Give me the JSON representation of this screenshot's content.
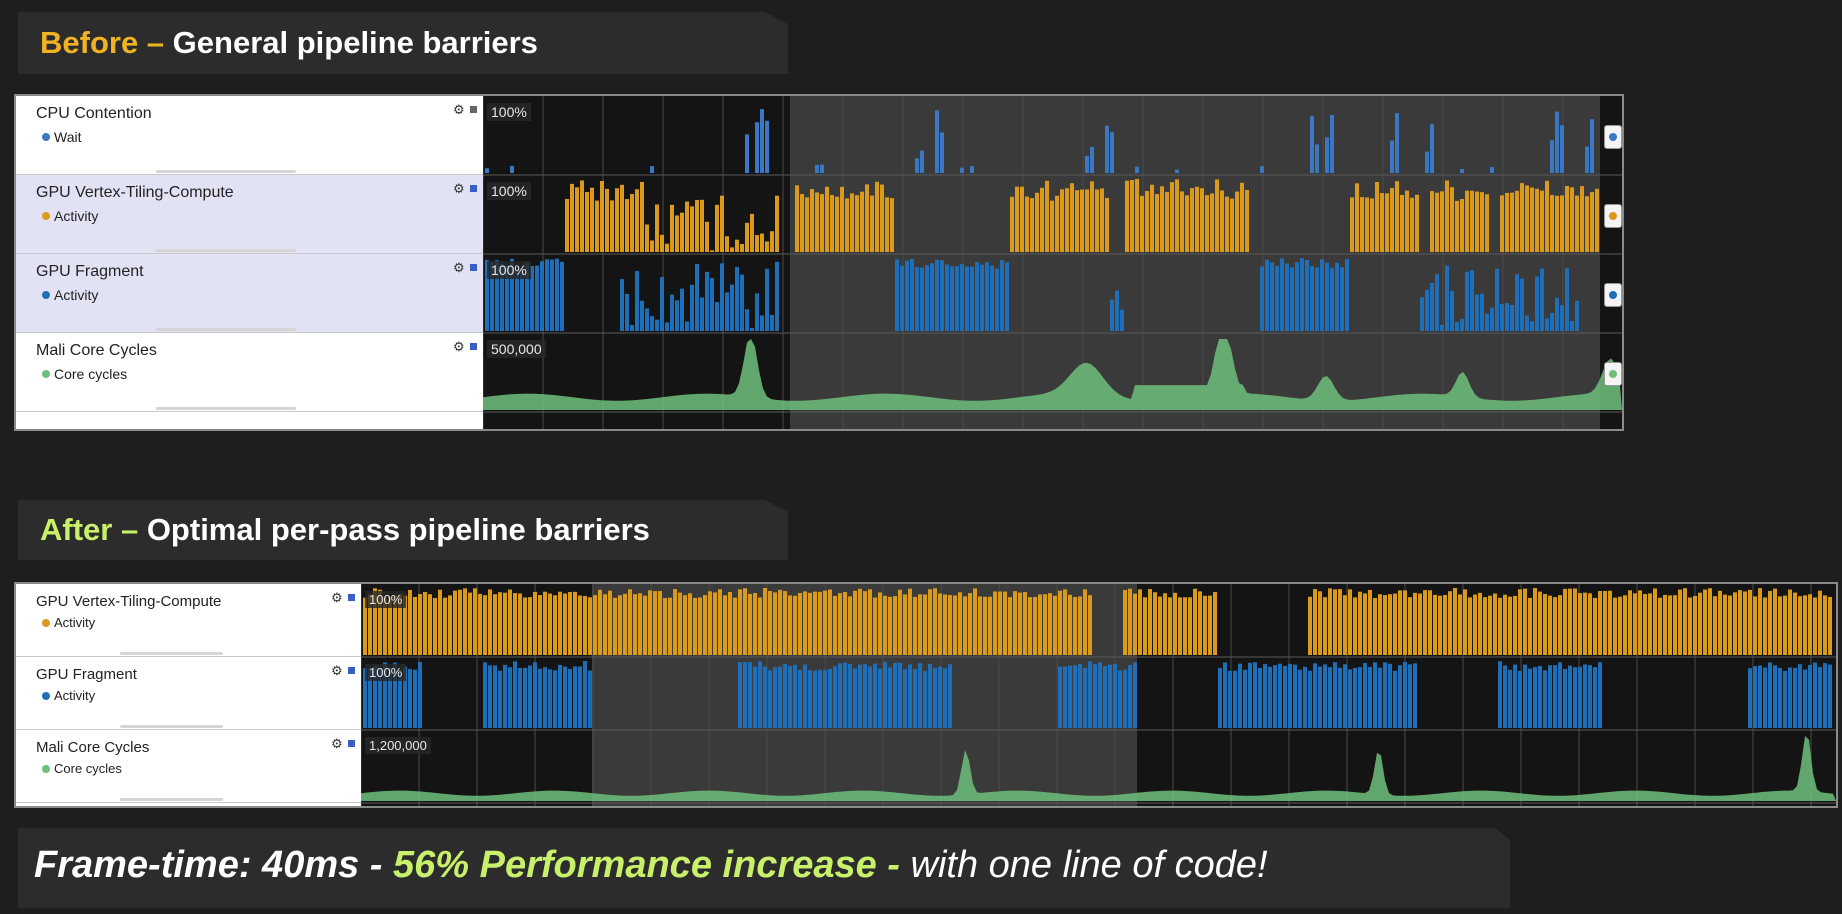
{
  "before": {
    "prefix": "Before –",
    "title": " General pipeline barriers",
    "tracks": [
      {
        "name": "CPU Contention",
        "series": "Wait",
        "color": "#3a78c4",
        "scale": "100%",
        "kind": "bar"
      },
      {
        "name": "GPU Vertex-Tiling-Compute",
        "series": "Activity",
        "color": "#d99a1e",
        "scale": "100%",
        "kind": "bar"
      },
      {
        "name": "GPU Fragment",
        "series": "Activity",
        "color": "#1f6fb8",
        "scale": "100%",
        "kind": "bar"
      },
      {
        "name": "Mali Core Cycles",
        "series": "Core cycles",
        "color": "#6fbf7c",
        "scale": "500,000",
        "kind": "area"
      }
    ]
  },
  "after": {
    "prefix": "After –",
    "title": " Optimal per-pass pipeline barriers",
    "tracks": [
      {
        "name": "GPU Vertex-Tiling-Compute",
        "series": "Activity",
        "color": "#d99a1e",
        "scale": "100%",
        "kind": "bar"
      },
      {
        "name": "GPU Fragment",
        "series": "Activity",
        "color": "#1f6fb8",
        "scale": "100%",
        "kind": "bar"
      },
      {
        "name": "Mali Core Cycles",
        "series": "Core cycles",
        "color": "#6fbf7c",
        "scale": "1,200,000",
        "kind": "area"
      }
    ]
  },
  "footer": {
    "part1": "Frame-time: 40ms - ",
    "part2": "56% Performance increase - ",
    "part3": "with one line of code!"
  },
  "colors": {
    "before_accent": "#f0b323",
    "after_accent": "#c8f06a",
    "footer_accent": "#c8f06a"
  },
  "icons": [
    "gear-icon",
    "config-square-icon",
    "series-dot-icon",
    "scroll-handle-icon"
  ]
}
